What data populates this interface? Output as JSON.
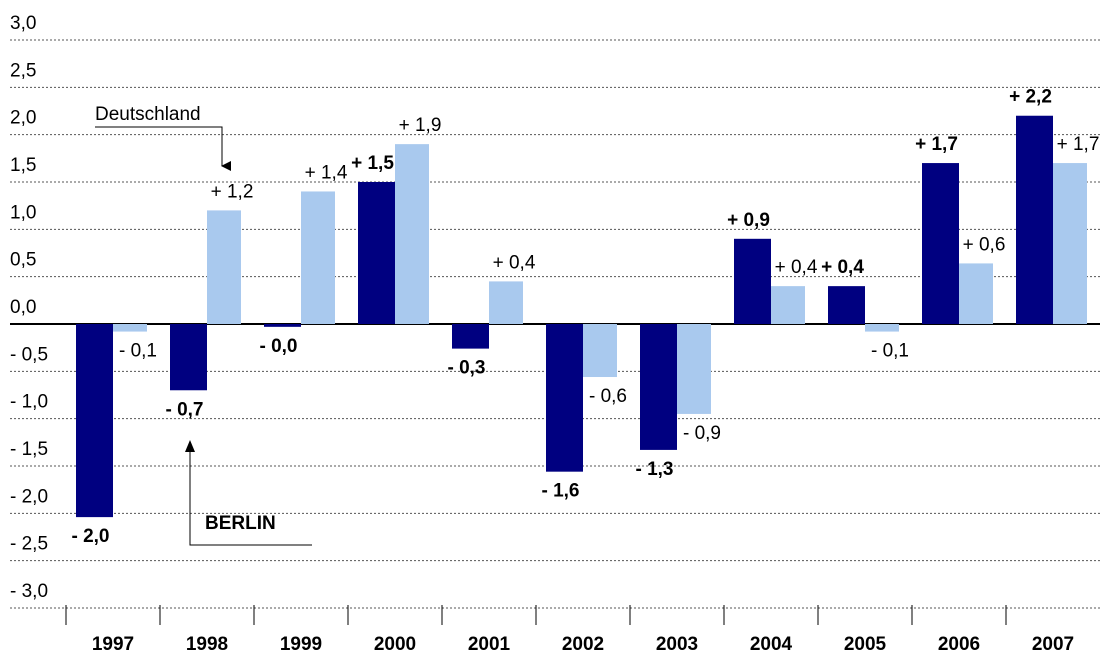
{
  "chart_data": {
    "type": "bar",
    "categories": [
      "1997",
      "1998",
      "1999",
      "2000",
      "2001",
      "2002",
      "2003",
      "2004",
      "2005",
      "2006",
      "2007"
    ],
    "series": [
      {
        "name": "BERLIN",
        "color": "#000080",
        "values": [
          -2.04,
          -0.7,
          -0.03,
          1.5,
          -0.26,
          -1.56,
          -1.33,
          0.9,
          0.4,
          1.7,
          2.2
        ],
        "value_labels": [
          "- 2,0",
          "- 0,7",
          "- 0,0",
          "+ 1,5",
          "- 0,3",
          "- 1,6",
          "- 1,3",
          "+ 0,9",
          "+ 0,4",
          "+ 1,7",
          "+ 2,2"
        ]
      },
      {
        "name": "Deutschland",
        "color": "#a9c9ee",
        "values": [
          -0.08,
          1.2,
          1.4,
          1.9,
          0.45,
          -0.56,
          -0.95,
          0.4,
          -0.08,
          0.64,
          1.7
        ],
        "value_labels": [
          "- 0,1",
          "+ 1,2",
          "+ 1,4",
          "+ 1,9",
          "+ 0,4",
          "- 0,6",
          "- 0,9",
          "+ 0,4",
          "- 0,1",
          "+ 0,6",
          "+ 1,7"
        ]
      }
    ],
    "ylim": [
      -3,
      3
    ],
    "yticks": [
      {
        "value": 3,
        "label": "3,0"
      },
      {
        "value": 2.5,
        "label": "2,5"
      },
      {
        "value": 2,
        "label": "2,0"
      },
      {
        "value": 1.5,
        "label": "1,5"
      },
      {
        "value": 1,
        "label": "1,0"
      },
      {
        "value": 0.5,
        "label": "0,5"
      },
      {
        "value": 0,
        "label": "0,0"
      },
      {
        "value": -0.5,
        "label": "- 0,5"
      },
      {
        "value": -1,
        "label": "- 1,0"
      },
      {
        "value": -1.5,
        "label": "- 1,5"
      },
      {
        "value": -2,
        "label": "- 2,0"
      },
      {
        "value": -2.5,
        "label": "- 2,5"
      },
      {
        "value": -3,
        "label": "- 3,0"
      }
    ],
    "grid": true
  }
}
